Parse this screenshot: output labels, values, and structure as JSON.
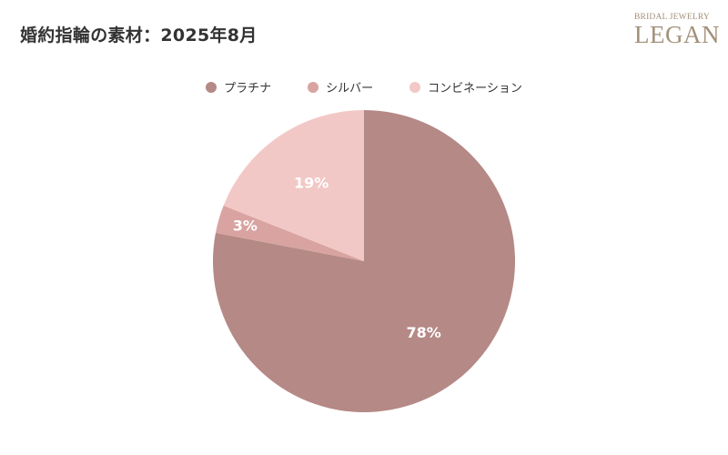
{
  "header": {
    "title": "婚約指輪の素材：2025年8月"
  },
  "logo": {
    "top_text": "BRIDAL JEWELRY",
    "main_text": "LEGAN"
  },
  "chart_data": {
    "type": "pie",
    "title": "婚約指輪の素材：2025年8月",
    "legend_position": "top",
    "slices": [
      {
        "label": "プラチナ",
        "value": 78,
        "display": "78%",
        "color": "#b58986"
      },
      {
        "label": "シルバー",
        "value": 3,
        "display": "3%",
        "color": "#d8a3a1"
      },
      {
        "label": "コンビネーション",
        "value": 19,
        "display": "19%",
        "color": "#f2c8c6"
      }
    ]
  }
}
